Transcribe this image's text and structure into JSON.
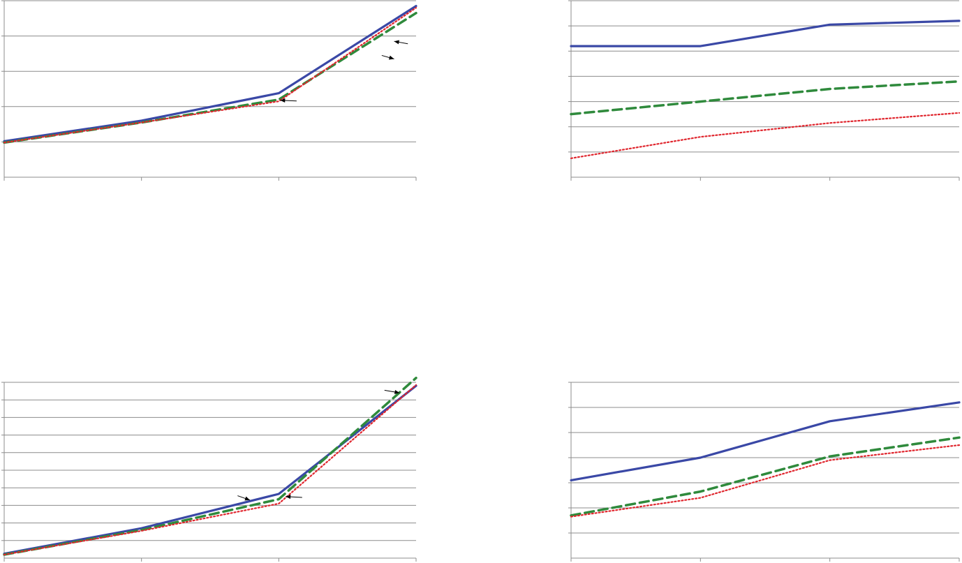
{
  "colors": {
    "series_solid": "#3a48a6",
    "series_dashed": "#2f8a3c",
    "series_dotted": "#e0262e",
    "grid": "#8c8c8c"
  },
  "chart_data": [
    {
      "id": "top-left",
      "type": "line",
      "x": [
        0,
        1,
        2,
        3
      ],
      "ylim": [
        0,
        5
      ],
      "grid_y": [
        1,
        2,
        3,
        4,
        5
      ],
      "grid": true,
      "series": [
        {
          "style": "solid",
          "values": [
            1.02,
            1.6,
            2.38,
            4.85
          ]
        },
        {
          "style": "dashed",
          "values": [
            0.98,
            1.55,
            2.2,
            4.65
          ]
        },
        {
          "style": "dotted",
          "values": [
            0.98,
            1.55,
            2.15,
            4.8
          ]
        }
      ],
      "pointers": [
        {
          "from": [
            2.75,
            3.45
          ],
          "to": [
            2.84,
            3.35
          ]
        },
        {
          "from": [
            2.94,
            3.78
          ],
          "to": [
            2.84,
            3.85
          ]
        },
        {
          "from": [
            2.13,
            2.16
          ],
          "to": [
            2.01,
            2.18
          ]
        }
      ]
    },
    {
      "id": "top-right",
      "type": "line",
      "x": [
        0,
        1,
        2,
        3
      ],
      "ylim": [
        0,
        7
      ],
      "grid_y": [
        1,
        2,
        3,
        4,
        5,
        6,
        7
      ],
      "grid": true,
      "series": [
        {
          "style": "solid",
          "values": [
            5.2,
            5.2,
            6.05,
            6.2
          ]
        },
        {
          "style": "dashed",
          "values": [
            2.5,
            3.0,
            3.5,
            3.8
          ]
        },
        {
          "style": "dotted",
          "values": [
            0.75,
            1.6,
            2.15,
            2.55
          ]
        }
      ]
    },
    {
      "id": "bottom-left",
      "type": "line",
      "x": [
        0,
        1,
        2,
        3
      ],
      "ylim": [
        0,
        10
      ],
      "grid_y": [
        1,
        2,
        3,
        4,
        5,
        6,
        7,
        8,
        9,
        10
      ],
      "grid": true,
      "series": [
        {
          "style": "solid",
          "values": [
            0.25,
            1.7,
            3.65,
            9.8
          ]
        },
        {
          "style": "dashed",
          "values": [
            0.2,
            1.6,
            3.35,
            10.25
          ]
        },
        {
          "style": "dotted",
          "values": [
            0.2,
            1.55,
            3.1,
            9.85
          ]
        }
      ],
      "pointers": [
        {
          "from": [
            1.7,
            3.55
          ],
          "to": [
            1.79,
            3.3
          ]
        },
        {
          "from": [
            2.17,
            3.45
          ],
          "to": [
            2.05,
            3.5
          ]
        },
        {
          "from": [
            2.77,
            9.55
          ],
          "to": [
            2.88,
            9.4
          ]
        }
      ]
    },
    {
      "id": "bottom-right",
      "type": "line",
      "x": [
        0,
        1,
        2,
        3
      ],
      "ylim": [
        0,
        7
      ],
      "grid_y": [
        1,
        2,
        3,
        4,
        5,
        6,
        7
      ],
      "grid": true,
      "series": [
        {
          "style": "solid",
          "values": [
            3.1,
            4.0,
            5.45,
            6.2
          ]
        },
        {
          "style": "dashed",
          "values": [
            1.7,
            2.65,
            4.05,
            4.8
          ]
        },
        {
          "style": "dotted",
          "values": [
            1.65,
            2.4,
            3.9,
            4.5
          ]
        }
      ]
    }
  ]
}
